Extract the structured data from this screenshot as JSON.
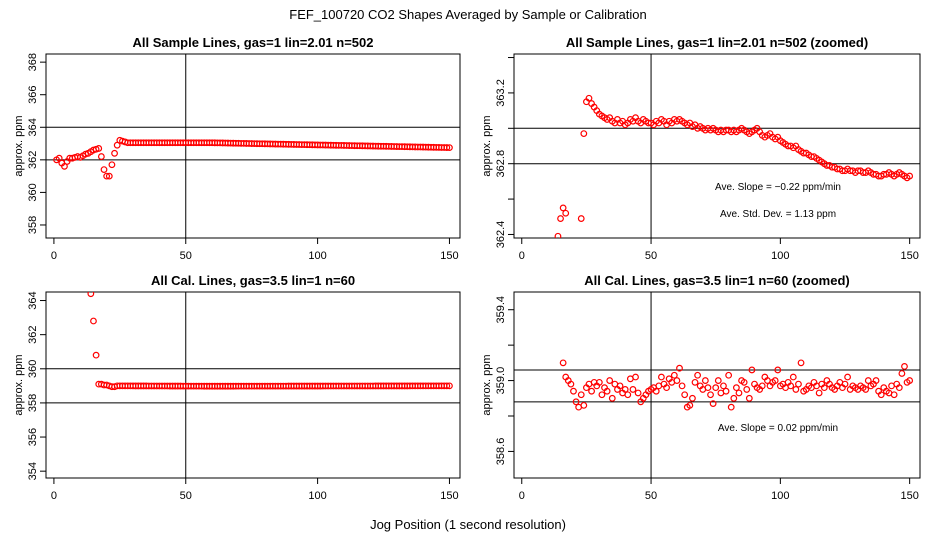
{
  "figure": {
    "title": "FEF_100720  CO2 Shapes Averaged by Sample or Calibration",
    "xlabel": "Jog Position (1 second resolution)"
  },
  "chart_data": [
    {
      "type": "scatter",
      "title": "All Sample Lines, gas=1 lin=2.01 n=502",
      "ylabel": "approx. ppm",
      "xlim": [
        -3,
        154
      ],
      "ylim": [
        357.2,
        368.5
      ],
      "xticks": [
        "0",
        "50",
        "100",
        "150"
      ],
      "xtick_values": [
        0,
        50,
        100,
        150
      ],
      "yticks": [
        "358",
        "360",
        "362",
        "364",
        "366",
        "368"
      ],
      "ytick_values": [
        358,
        360,
        362,
        364,
        366,
        368
      ],
      "hlines": [
        364,
        362
      ],
      "vline": 50,
      "annotations": [],
      "marker_color": "#ff0000",
      "points": [
        [
          1,
          362.0
        ],
        [
          2,
          362.1
        ],
        [
          3,
          361.8
        ],
        [
          4,
          361.6
        ],
        [
          5,
          361.9
        ],
        [
          6,
          362.1
        ],
        [
          7,
          362.1
        ],
        [
          8,
          362.15
        ],
        [
          9,
          362.2
        ],
        [
          10,
          362.15
        ],
        [
          11,
          362.25
        ],
        [
          12,
          362.35
        ],
        [
          13,
          362.4
        ],
        [
          14,
          362.5
        ],
        [
          15,
          362.6
        ],
        [
          16,
          362.65
        ],
        [
          17,
          362.7
        ],
        [
          18,
          362.2
        ],
        [
          19,
          361.4
        ],
        [
          20,
          361.0
        ],
        [
          21,
          361.0
        ],
        [
          22,
          361.7
        ],
        [
          23,
          362.4
        ],
        [
          24,
          362.9
        ],
        [
          25,
          363.2
        ],
        [
          26,
          363.15
        ],
        [
          27,
          363.1
        ]
      ],
      "points_smooth": {
        "x_start": 28,
        "x_end": 150,
        "step": 1,
        "y_start": 363.05,
        "y_mid_x": 60,
        "y_mid": 363.05,
        "y_end": 362.75
      }
    },
    {
      "type": "scatter",
      "title": "All Sample Lines, gas=1 lin=2.01 n=502 (zoomed)",
      "ylabel": "approx. ppm",
      "xlim": [
        -3,
        154
      ],
      "ylim": [
        362.38,
        363.42
      ],
      "xticks": [
        "0",
        "50",
        "100",
        "150"
      ],
      "xtick_values": [
        0,
        50,
        100,
        150
      ],
      "yticks": [
        "362.4",
        "362.8",
        "363.2"
      ],
      "ytick_values": [
        362.4,
        362.8,
        363.2
      ],
      "yticks_minor": [
        362.6,
        363.0,
        363.4
      ],
      "hlines": [
        363.0,
        362.8
      ],
      "vline": 50,
      "annotations": [
        "Ave. Slope =  −0.22  ppm/min",
        "Ave. Std. Dev. =  1.13  ppm"
      ],
      "marker_color": "#ff0000",
      "points": [
        [
          14,
          362.39
        ],
        [
          15,
          362.49
        ],
        [
          16,
          362.55
        ],
        [
          17,
          362.52
        ],
        [
          23,
          362.49
        ],
        [
          24,
          362.97
        ],
        [
          25,
          363.15
        ],
        [
          26,
          363.17
        ],
        [
          27,
          363.14
        ],
        [
          28,
          363.12
        ],
        [
          29,
          363.1
        ],
        [
          30,
          363.08
        ],
        [
          31,
          363.07
        ],
        [
          32,
          363.06
        ],
        [
          33,
          363.05
        ],
        [
          34,
          363.06
        ],
        [
          35,
          363.04
        ],
        [
          36,
          363.03
        ],
        [
          37,
          363.05
        ],
        [
          38,
          363.03
        ],
        [
          39,
          363.04
        ],
        [
          40,
          363.02
        ],
        [
          41,
          363.03
        ],
        [
          42,
          363.05
        ],
        [
          43,
          363.04
        ],
        [
          44,
          363.06
        ],
        [
          45,
          363.04
        ],
        [
          46,
          363.03
        ],
        [
          47,
          363.05
        ],
        [
          48,
          363.04
        ],
        [
          49,
          363.03
        ],
        [
          50,
          363.03
        ],
        [
          51,
          363.02
        ],
        [
          52,
          363.04
        ],
        [
          53,
          363.03
        ],
        [
          54,
          363.05
        ],
        [
          55,
          363.04
        ],
        [
          56,
          363.02
        ],
        [
          57,
          363.04
        ],
        [
          58,
          363.03
        ],
        [
          59,
          363.05
        ],
        [
          60,
          363.04
        ],
        [
          61,
          363.05
        ],
        [
          62,
          363.04
        ],
        [
          63,
          363.03
        ],
        [
          64,
          363.02
        ],
        [
          65,
          363.03
        ],
        [
          66,
          363.01
        ],
        [
          67,
          363.02
        ],
        [
          68,
          363.0
        ],
        [
          69,
          363.01
        ],
        [
          70,
          363.0
        ],
        [
          71,
          362.99
        ],
        [
          72,
          363.0
        ],
        [
          73,
          362.99
        ],
        [
          74,
          363.0
        ],
        [
          75,
          362.99
        ],
        [
          76,
          362.98
        ],
        [
          77,
          362.99
        ],
        [
          78,
          362.98
        ],
        [
          79,
          362.99
        ],
        [
          80,
          362.99
        ],
        [
          81,
          362.98
        ],
        [
          82,
          362.99
        ],
        [
          83,
          362.98
        ],
        [
          84,
          362.99
        ],
        [
          85,
          363.0
        ],
        [
          86,
          362.99
        ],
        [
          87,
          362.98
        ],
        [
          88,
          362.97
        ],
        [
          89,
          362.98
        ],
        [
          90,
          362.99
        ],
        [
          91,
          363.0
        ],
        [
          92,
          362.98
        ],
        [
          93,
          362.96
        ],
        [
          94,
          362.95
        ],
        [
          95,
          362.96
        ],
        [
          96,
          362.97
        ],
        [
          97,
          362.95
        ],
        [
          98,
          362.94
        ],
        [
          99,
          362.95
        ],
        [
          100,
          362.93
        ],
        [
          101,
          362.92
        ],
        [
          102,
          362.91
        ],
        [
          103,
          362.9
        ],
        [
          104,
          362.9
        ],
        [
          105,
          362.89
        ],
        [
          106,
          362.9
        ],
        [
          107,
          362.88
        ],
        [
          108,
          362.87
        ],
        [
          109,
          362.86
        ],
        [
          110,
          362.86
        ],
        [
          111,
          362.85
        ],
        [
          112,
          362.84
        ],
        [
          113,
          362.84
        ],
        [
          114,
          362.83
        ],
        [
          115,
          362.82
        ],
        [
          116,
          362.81
        ],
        [
          117,
          362.8
        ],
        [
          118,
          362.79
        ],
        [
          119,
          362.79
        ],
        [
          120,
          362.78
        ],
        [
          121,
          362.78
        ],
        [
          122,
          362.77
        ],
        [
          123,
          362.77
        ],
        [
          124,
          362.76
        ],
        [
          125,
          362.76
        ],
        [
          126,
          362.77
        ],
        [
          127,
          362.76
        ],
        [
          128,
          362.76
        ],
        [
          129,
          362.75
        ],
        [
          130,
          362.76
        ],
        [
          131,
          362.76
        ],
        [
          132,
          362.75
        ],
        [
          133,
          362.75
        ],
        [
          134,
          362.76
        ],
        [
          135,
          362.75
        ],
        [
          136,
          362.74
        ],
        [
          137,
          362.74
        ],
        [
          138,
          362.73
        ],
        [
          139,
          362.73
        ],
        [
          140,
          362.74
        ],
        [
          141,
          362.74
        ],
        [
          142,
          362.75
        ],
        [
          143,
          362.74
        ],
        [
          144,
          362.73
        ],
        [
          145,
          362.74
        ],
        [
          146,
          362.75
        ],
        [
          147,
          362.74
        ],
        [
          148,
          362.73
        ],
        [
          149,
          362.72
        ],
        [
          150,
          362.73
        ]
      ]
    },
    {
      "type": "scatter",
      "title": "All Cal. Lines, gas=3.5 lin=1 n=60",
      "ylabel": "approx. ppm",
      "xlim": [
        -3,
        154
      ],
      "ylim": [
        353.6,
        364.5
      ],
      "xticks": [
        "0",
        "50",
        "100",
        "150"
      ],
      "xtick_values": [
        0,
        50,
        100,
        150
      ],
      "yticks": [
        "354",
        "356",
        "358",
        "360",
        "362",
        "364"
      ],
      "ytick_values": [
        354,
        356,
        358,
        360,
        362,
        364
      ],
      "hlines": [
        360,
        358
      ],
      "vline": 50,
      "annotations": [],
      "marker_color": "#ff0000",
      "points": [
        [
          14,
          364.4
        ],
        [
          15,
          362.8
        ],
        [
          16,
          360.8
        ],
        [
          17,
          359.1
        ],
        [
          18,
          359.1
        ],
        [
          19,
          359.05
        ],
        [
          20,
          359.05
        ],
        [
          21,
          359.0
        ],
        [
          22,
          358.95
        ],
        [
          23,
          358.95
        ]
      ],
      "points_smooth": {
        "x_start": 24,
        "x_end": 150,
        "step": 1,
        "y_start": 359.0,
        "y_mid_x": 60,
        "y_mid": 358.98,
        "y_end": 359.0
      }
    },
    {
      "type": "scatter",
      "title": "All Cal. Lines, gas=3.5 lin=1 n=60 (zoomed)",
      "ylabel": "approx. ppm",
      "xlim": [
        -3,
        154
      ],
      "ylim": [
        358.45,
        359.5
      ],
      "xticks": [
        "0",
        "50",
        "100",
        "150"
      ],
      "xtick_values": [
        0,
        50,
        100,
        150
      ],
      "yticks": [
        "358.6",
        "359.0",
        "359.4"
      ],
      "ytick_values": [
        358.6,
        359.0,
        359.4
      ],
      "yticks_minor": [
        358.8,
        359.2
      ],
      "hlines": [
        359.06,
        358.88
      ],
      "vline": 50,
      "annotations": [
        "Ave. Slope =  0.02  ppm/min"
      ],
      "marker_color": "#ff0000",
      "points": [
        [
          16,
          359.1
        ],
        [
          17,
          359.02
        ],
        [
          18,
          359.0
        ],
        [
          19,
          358.98
        ],
        [
          20,
          358.94
        ],
        [
          21,
          358.88
        ],
        [
          22,
          358.85
        ],
        [
          23,
          358.92
        ],
        [
          24,
          358.86
        ],
        [
          25,
          358.96
        ],
        [
          26,
          358.98
        ],
        [
          27,
          358.94
        ],
        [
          28,
          358.99
        ],
        [
          29,
          358.97
        ],
        [
          30,
          358.99
        ],
        [
          31,
          358.92
        ],
        [
          32,
          358.96
        ],
        [
          33,
          358.94
        ],
        [
          34,
          359.0
        ],
        [
          35,
          358.9
        ],
        [
          36,
          358.98
        ],
        [
          37,
          358.95
        ],
        [
          38,
          358.97
        ],
        [
          39,
          358.93
        ],
        [
          40,
          358.95
        ],
        [
          41,
          358.92
        ],
        [
          42,
          359.01
        ],
        [
          43,
          358.95
        ],
        [
          44,
          359.02
        ],
        [
          45,
          358.93
        ],
        [
          46,
          358.88
        ],
        [
          47,
          358.9
        ],
        [
          48,
          358.92
        ],
        [
          49,
          358.94
        ],
        [
          50,
          358.95
        ],
        [
          51,
          358.96
        ],
        [
          52,
          358.94
        ],
        [
          53,
          358.97
        ],
        [
          54,
          359.02
        ],
        [
          55,
          358.98
        ],
        [
          56,
          358.96
        ],
        [
          57,
          359.01
        ],
        [
          58,
          358.99
        ],
        [
          59,
          359.03
        ],
        [
          60,
          359.0
        ],
        [
          61,
          359.07
        ],
        [
          62,
          358.97
        ],
        [
          63,
          358.92
        ],
        [
          64,
          358.85
        ],
        [
          65,
          358.86
        ],
        [
          66,
          358.9
        ],
        [
          67,
          358.99
        ],
        [
          68,
          359.03
        ],
        [
          69,
          358.97
        ],
        [
          70,
          358.95
        ],
        [
          71,
          359.0
        ],
        [
          72,
          358.96
        ],
        [
          73,
          358.92
        ],
        [
          74,
          358.87
        ],
        [
          75,
          358.96
        ],
        [
          76,
          359.0
        ],
        [
          77,
          358.93
        ],
        [
          78,
          358.97
        ],
        [
          79,
          358.94
        ],
        [
          80,
          359.03
        ],
        [
          81,
          358.85
        ],
        [
          82,
          358.9
        ],
        [
          83,
          358.96
        ],
        [
          84,
          358.93
        ],
        [
          85,
          359.0
        ],
        [
          86,
          358.99
        ],
        [
          87,
          358.95
        ],
        [
          88,
          358.9
        ],
        [
          89,
          359.06
        ],
        [
          90,
          358.98
        ],
        [
          91,
          358.96
        ],
        [
          92,
          358.95
        ],
        [
          93,
          358.97
        ],
        [
          94,
          359.02
        ],
        [
          95,
          359.0
        ],
        [
          96,
          358.97
        ],
        [
          97,
          358.99
        ],
        [
          98,
          359.0
        ],
        [
          99,
          359.06
        ],
        [
          100,
          358.97
        ],
        [
          101,
          358.98
        ],
        [
          102,
          358.96
        ],
        [
          103,
          358.99
        ],
        [
          104,
          358.97
        ],
        [
          105,
          359.02
        ],
        [
          106,
          358.95
        ],
        [
          107,
          358.98
        ],
        [
          108,
          359.1
        ],
        [
          109,
          358.94
        ],
        [
          110,
          358.95
        ],
        [
          111,
          358.97
        ],
        [
          112,
          358.96
        ],
        [
          113,
          358.99
        ],
        [
          114,
          358.97
        ],
        [
          115,
          358.93
        ],
        [
          116,
          358.98
        ],
        [
          117,
          358.96
        ],
        [
          118,
          359.0
        ],
        [
          119,
          358.98
        ],
        [
          120,
          358.96
        ],
        [
          121,
          358.95
        ],
        [
          122,
          358.97
        ],
        [
          123,
          358.99
        ],
        [
          124,
          358.96
        ],
        [
          125,
          358.98
        ],
        [
          126,
          359.02
        ],
        [
          127,
          358.95
        ],
        [
          128,
          358.97
        ],
        [
          129,
          358.96
        ],
        [
          130,
          358.95
        ],
        [
          131,
          358.97
        ],
        [
          132,
          358.96
        ],
        [
          133,
          358.95
        ],
        [
          134,
          359.0
        ],
        [
          135,
          358.97
        ],
        [
          136,
          358.98
        ],
        [
          137,
          359.0
        ],
        [
          138,
          358.94
        ],
        [
          139,
          358.92
        ],
        [
          140,
          358.96
        ],
        [
          141,
          358.94
        ],
        [
          142,
          358.93
        ],
        [
          143,
          358.97
        ],
        [
          144,
          358.92
        ],
        [
          145,
          358.98
        ],
        [
          146,
          358.96
        ],
        [
          147,
          359.04
        ],
        [
          148,
          359.08
        ],
        [
          149,
          358.99
        ],
        [
          150,
          359.0
        ]
      ]
    }
  ]
}
